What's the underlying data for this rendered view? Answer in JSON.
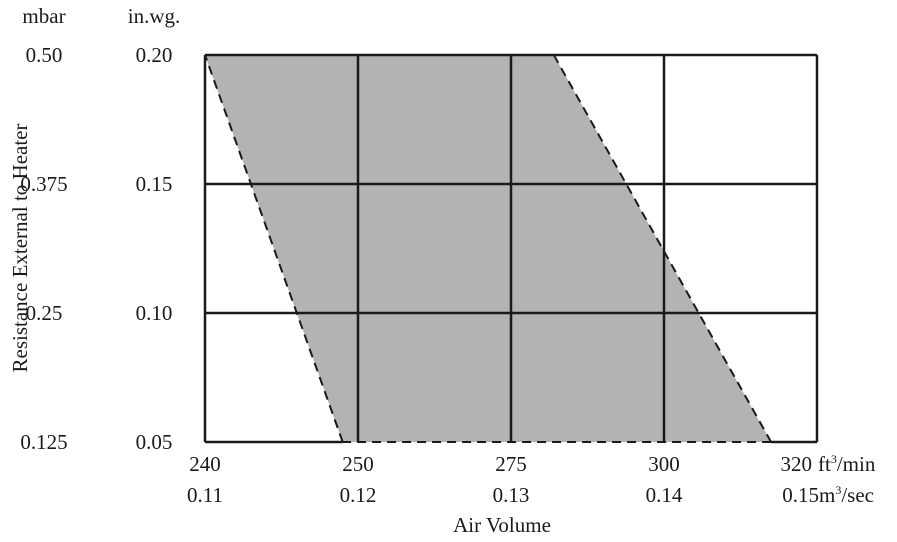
{
  "chart_data": {
    "type": "area",
    "title": "",
    "xlabel": "Air Volume",
    "ylabel": "Resistance External to Heater",
    "x_ticks": [
      {
        "primary": "240",
        "secondary": "0.11",
        "value": 240
      },
      {
        "primary": "250",
        "secondary": "0.12",
        "value": 250
      },
      {
        "primary": "275",
        "secondary": "0.13",
        "value": 275
      },
      {
        "primary": "300",
        "secondary": "0.14",
        "value": 300
      },
      {
        "primary": "320",
        "secondary": "0.15",
        "value": 320
      }
    ],
    "x_units": {
      "primary": "ft",
      "primary_sup": "3",
      "primary_tail": "/min",
      "secondary": "m",
      "secondary_sup": "3",
      "secondary_tail": "/sec"
    },
    "y_ticks": [
      {
        "primary": "0.20",
        "secondary": "0.50",
        "value": 0.2
      },
      {
        "primary": "0.15",
        "secondary": "0.375",
        "value": 0.15
      },
      {
        "primary": "0.10",
        "secondary": "0.25",
        "value": 0.1
      },
      {
        "primary": "0.05",
        "secondary": "0.125",
        "value": 0.05
      }
    ],
    "y_units": {
      "primary": "in.wg.",
      "secondary": "mbar"
    },
    "xlim": [
      240,
      320
    ],
    "ylim": [
      0.05,
      0.2
    ],
    "grid": true,
    "series": [
      {
        "region": [
          {
            "x": 240,
            "y": 0.2
          },
          {
            "x": 282,
            "y": 0.2
          },
          {
            "x": 314,
            "y": 0.05
          },
          {
            "x": 249,
            "y": 0.05
          }
        ],
        "fill": "#b3b3b6",
        "boundary_style": "dashed"
      }
    ],
    "colors": {
      "fill": "#b3b3b6",
      "grid": "#1a1a1a",
      "boundary": "#1a1a1a",
      "text": "#1a1a1a"
    }
  }
}
